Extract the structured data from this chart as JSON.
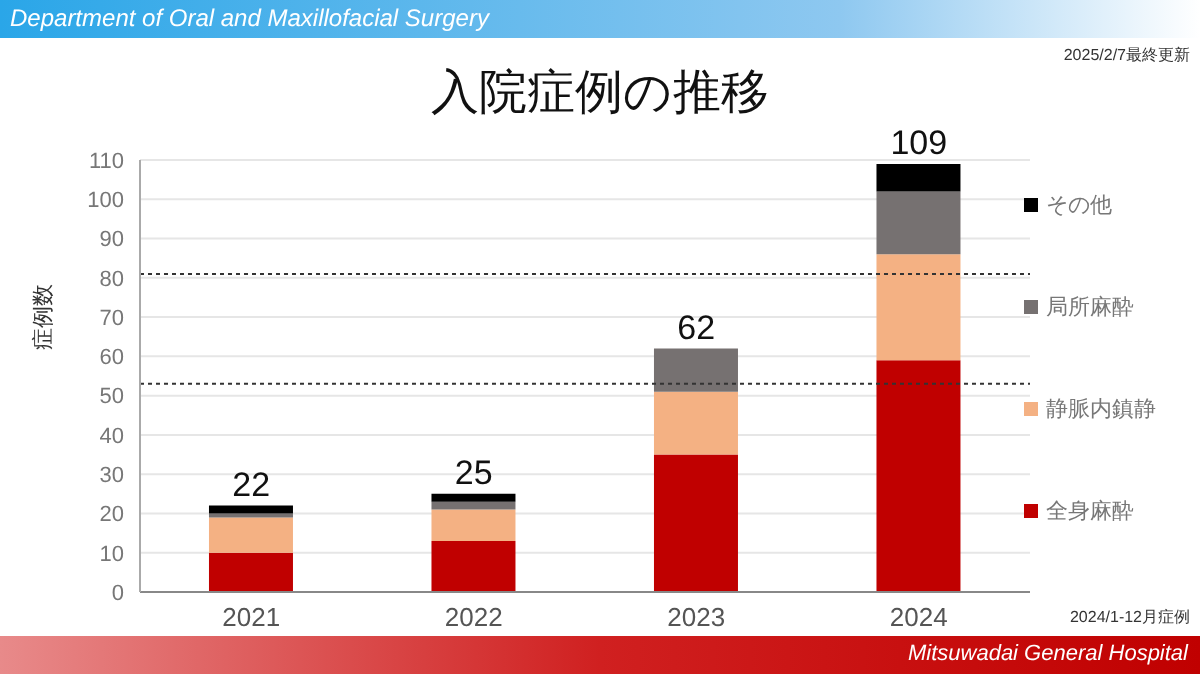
{
  "chart_data": {
    "type": "bar",
    "title": "入院症例の推移",
    "ylabel": "症例数",
    "stacked": true,
    "categories": [
      "2021",
      "2022",
      "2023",
      "2024"
    ],
    "series": [
      {
        "name": "全身麻酔",
        "color": "#c00000",
        "values": [
          10,
          13,
          35,
          59
        ]
      },
      {
        "name": "静脈内鎮静",
        "color": "#f4b183",
        "values": [
          9,
          8,
          16,
          27
        ]
      },
      {
        "name": "局所麻酔",
        "color": "#767171",
        "values": [
          1,
          2,
          11,
          16
        ]
      },
      {
        "name": "その他",
        "color": "#000000",
        "values": [
          2,
          2,
          0,
          7
        ]
      }
    ],
    "totals": [
      "22",
      "25",
      "62",
      "109"
    ],
    "ylim": [
      0,
      110
    ],
    "yticks": [
      0,
      10,
      20,
      30,
      40,
      50,
      60,
      70,
      80,
      90,
      100,
      110
    ],
    "grid": "y",
    "legend": "right",
    "ref_lines": [
      {
        "axis": "y",
        "value": 81,
        "line_style": "dotted",
        "color": "#333333"
      },
      {
        "axis": "y",
        "value": 53,
        "line_style": "dotted",
        "color": "#333333"
      }
    ],
    "annotations": [
      "Department of Oral and Maxillofacial Surgery",
      "2025/2/7最終更新",
      "2024/1-12月症例",
      "Mitsuwadai General Hospital"
    ]
  }
}
